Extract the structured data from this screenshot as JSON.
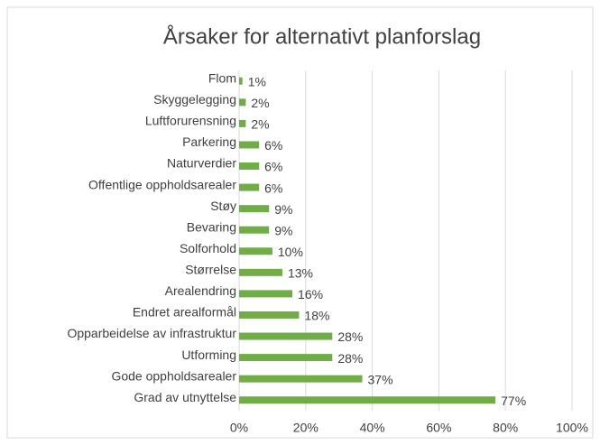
{
  "chart_data": {
    "type": "bar",
    "orientation": "horizontal",
    "title": "Årsaker for alternativt planforslag",
    "categories": [
      "Flom",
      "Skyggelegging",
      "Luftforurensning",
      "Parkering",
      "Naturverdier",
      "Offentlige oppholdsarealer",
      "Støy",
      "Bevaring",
      "Solforhold",
      "Størrelse",
      "Arealendring",
      "Endret arealformål",
      "Opparbeidelse av infrastruktur",
      "Utforming",
      "Gode oppholdsarealer",
      "Grad av utnyttelse"
    ],
    "values": [
      1,
      2,
      2,
      6,
      6,
      6,
      9,
      9,
      10,
      13,
      16,
      18,
      28,
      28,
      37,
      77
    ],
    "value_labels": [
      "1%",
      "2%",
      "2%",
      "6%",
      "6%",
      "6%",
      "9%",
      "9%",
      "10%",
      "13%",
      "16%",
      "18%",
      "28%",
      "28%",
      "37%",
      "77%"
    ],
    "color": "#70ad47",
    "xlim": [
      0,
      100
    ],
    "xticks": [
      {
        "value": 0,
        "label": "0%"
      },
      {
        "value": 20,
        "label": "20%"
      },
      {
        "value": 40,
        "label": "40%"
      },
      {
        "value": 60,
        "label": "60%"
      },
      {
        "value": 80,
        "label": "80%"
      },
      {
        "value": 100,
        "label": "100%"
      }
    ],
    "grid": true
  }
}
